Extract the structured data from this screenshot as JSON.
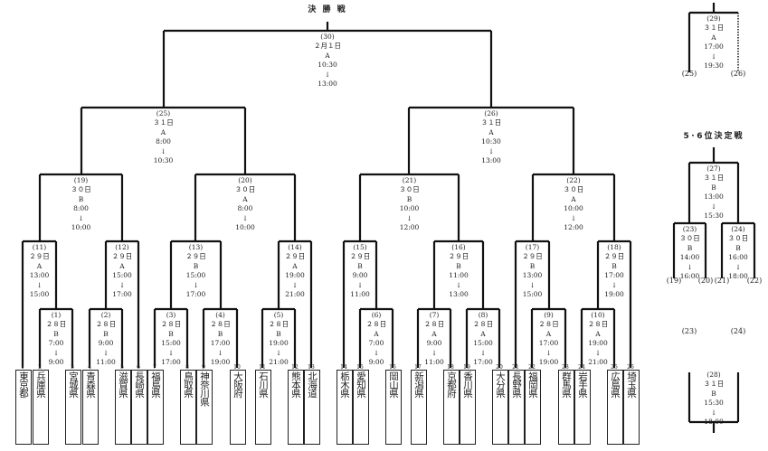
{
  "titles": {
    "final": "決 勝 戦",
    "fifth_sixth": "5･6位決定戦"
  },
  "arrow": "↓",
  "teams": [
    {
      "num": "1",
      "name": "東京都"
    },
    {
      "num": "2",
      "name": "兵庫県"
    },
    {
      "num": "3",
      "name": "宮城県"
    },
    {
      "num": "4",
      "name": "青森県"
    },
    {
      "num": "5",
      "name": "滋賀県"
    },
    {
      "num": "6",
      "name": "長崎県"
    },
    {
      "num": "7",
      "name": "福島県"
    },
    {
      "num": "8",
      "name": "鳥取県"
    },
    {
      "num": "9",
      "name": "神奈川県"
    },
    {
      "num": "10",
      "name": "大阪府"
    },
    {
      "num": "11",
      "name": "石川県"
    },
    {
      "num": "12",
      "name": "熊本県"
    },
    {
      "num": "13",
      "name": "北海道"
    },
    {
      "num": "14",
      "name": "栃木県"
    },
    {
      "num": "15",
      "name": "愛知県"
    },
    {
      "num": "16",
      "name": "岡山県"
    },
    {
      "num": "17",
      "name": "新潟県"
    },
    {
      "num": "18",
      "name": "京都府"
    },
    {
      "num": "19",
      "name": "香川県"
    },
    {
      "num": "20",
      "name": "大分県"
    },
    {
      "num": "21",
      "name": "長野県"
    },
    {
      "num": "22",
      "name": "福岡県"
    },
    {
      "num": "23",
      "name": "群馬県"
    },
    {
      "num": "24",
      "name": "岩手県"
    },
    {
      "num": "25",
      "name": "広島県"
    },
    {
      "num": "26",
      "name": "埼玉県"
    }
  ],
  "matches": [
    {
      "id": "(1)",
      "day": "２８日",
      "court": "B",
      "start": "7:00",
      "end": "9:00"
    },
    {
      "id": "(2)",
      "day": "２８日",
      "court": "B",
      "start": "9:00",
      "end": "11:00"
    },
    {
      "id": "(3)",
      "day": "２８日",
      "court": "B",
      "start": "15:00",
      "end": "17:00"
    },
    {
      "id": "(4)",
      "day": "２８日",
      "court": "B",
      "start": "17:00",
      "end": "19:00"
    },
    {
      "id": "(5)",
      "day": "２８日",
      "court": "B",
      "start": "19:00",
      "end": "21:00"
    },
    {
      "id": "(6)",
      "day": "２８日",
      "court": "A",
      "start": "7:00",
      "end": "9:00"
    },
    {
      "id": "(7)",
      "day": "２８日",
      "court": "A",
      "start": "9:00",
      "end": "11:00"
    },
    {
      "id": "(8)",
      "day": "２８日",
      "court": "A",
      "start": "15:00",
      "end": "17:00"
    },
    {
      "id": "(9)",
      "day": "２８日",
      "court": "A",
      "start": "17:00",
      "end": "19:00"
    },
    {
      "id": "(10)",
      "day": "２８日",
      "court": "A",
      "start": "19:00",
      "end": "21:00"
    },
    {
      "id": "(11)",
      "day": "２９日",
      "court": "A",
      "start": "13:00",
      "end": "15:00"
    },
    {
      "id": "(12)",
      "day": "２９日",
      "court": "A",
      "start": "15:00",
      "end": "17:00"
    },
    {
      "id": "(13)",
      "day": "２９日",
      "court": "B",
      "start": "15:00",
      "end": "17:00"
    },
    {
      "id": "(14)",
      "day": "２９日",
      "court": "A",
      "start": "19:00",
      "end": "21:00"
    },
    {
      "id": "(15)",
      "day": "２９日",
      "court": "B",
      "start": "9:00",
      "end": "11:00"
    },
    {
      "id": "(16)",
      "day": "２９日",
      "court": "B",
      "start": "11:00",
      "end": "13:00"
    },
    {
      "id": "(17)",
      "day": "２９日",
      "court": "B",
      "start": "13:00",
      "end": "15:00"
    },
    {
      "id": "(18)",
      "day": "２９日",
      "court": "B",
      "start": "17:00",
      "end": "19:00"
    },
    {
      "id": "(19)",
      "day": "３０日",
      "court": "B",
      "start": "8:00",
      "end": "10:00"
    },
    {
      "id": "(20)",
      "day": "３０日",
      "court": "A",
      "start": "8:00",
      "end": "10:00"
    },
    {
      "id": "(21)",
      "day": "３０日",
      "court": "B",
      "start": "10:00",
      "end": "12:00"
    },
    {
      "id": "(22)",
      "day": "３０日",
      "court": "A",
      "start": "10:00",
      "end": "12:00"
    },
    {
      "id": "(23)",
      "day": "３０日",
      "court": "B",
      "start": "14:00",
      "end": "16:00"
    },
    {
      "id": "(24)",
      "day": "３０日",
      "court": "B",
      "start": "16:00",
      "end": "18:00"
    },
    {
      "id": "(25)",
      "day": "３１日",
      "court": "A",
      "start": "8:00",
      "end": "10:30"
    },
    {
      "id": "(26)",
      "day": "３１日",
      "court": "A",
      "start": "10:30",
      "end": "13:00"
    },
    {
      "id": "(27)",
      "day": "３１日",
      "court": "B",
      "start": "13:00",
      "end": "15:30"
    },
    {
      "id": "(28)",
      "day": "３１日",
      "court": "B",
      "start": "15:30",
      "end": "18:00"
    },
    {
      "id": "(29)",
      "day": "３１日",
      "court": "A",
      "start": "17:00",
      "end": "19:30"
    },
    {
      "id": "(30)",
      "day": "２月１日",
      "court": "A",
      "start": "10:30",
      "end": "13:00"
    }
  ],
  "references": [
    "(25)",
    "(26)",
    "(19)",
    "(20)",
    "(21)",
    "(22)",
    "(23)",
    "(24)"
  ]
}
